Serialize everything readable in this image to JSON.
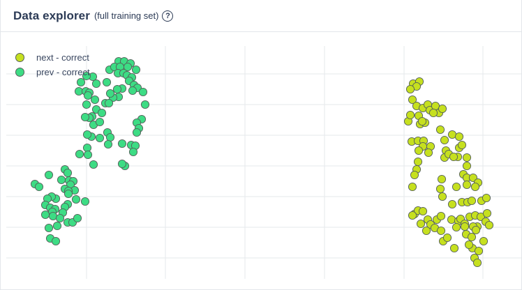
{
  "header": {
    "title": "Data explorer",
    "subtitle": "(full training set)",
    "help_icon": "question-circle-icon",
    "help_glyph": "?"
  },
  "chart_data": {
    "type": "scatter",
    "title": "",
    "xlabel": "",
    "ylabel": "",
    "grid": true,
    "legend_position": "top-left",
    "series": [
      {
        "name": "next - correct",
        "color": "#c6e01f",
        "points": [
          [
            591,
            120
          ],
          [
            600,
            117
          ],
          [
            596,
            124
          ],
          [
            587,
            128
          ],
          [
            590,
            143
          ],
          [
            596,
            152
          ],
          [
            605,
            155
          ],
          [
            612,
            150
          ],
          [
            615,
            158
          ],
          [
            623,
            152
          ],
          [
            628,
            162
          ],
          [
            633,
            156
          ],
          [
            620,
            162
          ],
          [
            599,
            166
          ],
          [
            584,
            174
          ],
          [
            587,
            165
          ],
          [
            601,
            178
          ],
          [
            608,
            176
          ],
          [
            604,
            174
          ],
          [
            630,
            186
          ],
          [
            589,
            203
          ],
          [
            598,
            202
          ],
          [
            606,
            202
          ],
          [
            605,
            210
          ],
          [
            599,
            216
          ],
          [
            616,
            210
          ],
          [
            613,
            219
          ],
          [
            636,
            201
          ],
          [
            647,
            193
          ],
          [
            657,
            196
          ],
          [
            638,
            216
          ],
          [
            636,
            226
          ],
          [
            642,
            221
          ],
          [
            657,
            212
          ],
          [
            661,
            208
          ],
          [
            655,
            225
          ],
          [
            649,
            225
          ],
          [
            668,
            226
          ],
          [
            668,
            238
          ],
          [
            663,
            250
          ],
          [
            668,
            255
          ],
          [
            677,
            255
          ],
          [
            684,
            262
          ],
          [
            680,
            268
          ],
          [
            668,
            265
          ],
          [
            598,
            232
          ],
          [
            596,
            243
          ],
          [
            593,
            251
          ],
          [
            590,
            268
          ],
          [
            632,
            257
          ],
          [
            630,
            271
          ],
          [
            653,
            268
          ],
          [
            633,
            282
          ],
          [
            647,
            293
          ],
          [
            661,
            290
          ],
          [
            669,
            290
          ],
          [
            675,
            288
          ],
          [
            689,
            288
          ],
          [
            696,
            284
          ],
          [
            593,
            307
          ],
          [
            598,
            302
          ],
          [
            605,
            303
          ],
          [
            590,
            309
          ],
          [
            602,
            321
          ],
          [
            612,
            315
          ],
          [
            616,
            322
          ],
          [
            625,
            315
          ],
          [
            631,
            310
          ],
          [
            610,
            331
          ],
          [
            622,
            327
          ],
          [
            631,
            331
          ],
          [
            646,
            315
          ],
          [
            656,
            317
          ],
          [
            659,
            314
          ],
          [
            665,
            321
          ],
          [
            672,
            311
          ],
          [
            680,
            309
          ],
          [
            688,
            311
          ],
          [
            697,
            306
          ],
          [
            695,
            318
          ],
          [
            683,
            325
          ],
          [
            677,
            325
          ],
          [
            665,
            325
          ],
          [
            653,
            326
          ],
          [
            634,
            346
          ],
          [
            650,
            356
          ],
          [
            667,
            336
          ],
          [
            675,
            340
          ],
          [
            681,
            330
          ],
          [
            700,
            323
          ],
          [
            692,
            346
          ],
          [
            676,
            356
          ],
          [
            685,
            360
          ],
          [
            679,
            370
          ],
          [
            683,
            377
          ],
          [
            671,
            351
          ],
          [
            640,
            341
          ]
        ]
      },
      {
        "name": "prev - correct",
        "color": "#3ddc84",
        "points": [
          [
            169,
            88
          ],
          [
            177,
            88
          ],
          [
            186,
            91
          ],
          [
            182,
            96
          ],
          [
            194,
            100
          ],
          [
            156,
            100
          ],
          [
            163,
            96
          ],
          [
            171,
            96
          ],
          [
            168,
            105
          ],
          [
            176,
            105
          ],
          [
            181,
            108
          ],
          [
            188,
            111
          ],
          [
            184,
            116
          ],
          [
            191,
            122
          ],
          [
            196,
            126
          ],
          [
            204,
            132
          ],
          [
            189,
            130
          ],
          [
            174,
            127
          ],
          [
            167,
            128
          ],
          [
            169,
            139
          ],
          [
            161,
            140
          ],
          [
            157,
            134
          ],
          [
            152,
            118
          ],
          [
            137,
            120
          ],
          [
            132,
            110
          ],
          [
            123,
            109
          ],
          [
            115,
            118
          ],
          [
            112,
            131
          ],
          [
            122,
            131
          ],
          [
            127,
            133
          ],
          [
            125,
            137
          ],
          [
            123,
            150
          ],
          [
            135,
            143
          ],
          [
            137,
            157
          ],
          [
            150,
            148
          ],
          [
            155,
            148
          ],
          [
            145,
            162
          ],
          [
            131,
            167
          ],
          [
            127,
            169
          ],
          [
            121,
            168
          ],
          [
            133,
            179
          ],
          [
            142,
            175
          ],
          [
            153,
            190
          ],
          [
            157,
            197
          ],
          [
            142,
            198
          ],
          [
            130,
            196
          ],
          [
            124,
            193
          ],
          [
            124,
            212
          ],
          [
            113,
            221
          ],
          [
            125,
            222
          ],
          [
            154,
            207
          ],
          [
            174,
            206
          ],
          [
            187,
            208
          ],
          [
            193,
            209
          ],
          [
            190,
            218
          ],
          [
            207,
            150
          ],
          [
            202,
            171
          ],
          [
            195,
            176
          ],
          [
            198,
            184
          ],
          [
            195,
            190
          ],
          [
            133,
            236
          ],
          [
            178,
            238
          ],
          [
            174,
            235
          ],
          [
            49,
            264
          ],
          [
            55,
            268
          ],
          [
            69,
            251
          ],
          [
            92,
            243
          ],
          [
            96,
            248
          ],
          [
            87,
            258
          ],
          [
            98,
            259
          ],
          [
            104,
            260
          ],
          [
            100,
            265
          ],
          [
            106,
            273
          ],
          [
            92,
            271
          ],
          [
            97,
            274
          ],
          [
            97,
            278
          ],
          [
            108,
            286
          ],
          [
            121,
            289
          ],
          [
            96,
            293
          ],
          [
            92,
            297
          ],
          [
            79,
            285
          ],
          [
            73,
            282
          ],
          [
            67,
            285
          ],
          [
            64,
            294
          ],
          [
            71,
            298
          ],
          [
            78,
            300
          ],
          [
            89,
            305
          ],
          [
            74,
            304
          ],
          [
            64,
            308
          ],
          [
            75,
            310
          ],
          [
            85,
            313
          ],
          [
            96,
            319
          ],
          [
            103,
            319
          ],
          [
            110,
            313
          ],
          [
            81,
            324
          ],
          [
            69,
            327
          ],
          [
            71,
            342
          ],
          [
            79,
            346
          ]
        ]
      }
    ],
    "colors": {
      "accent_text": "#2b3a55",
      "grid": "#e6e8eb",
      "point_stroke": "#55605a"
    }
  }
}
